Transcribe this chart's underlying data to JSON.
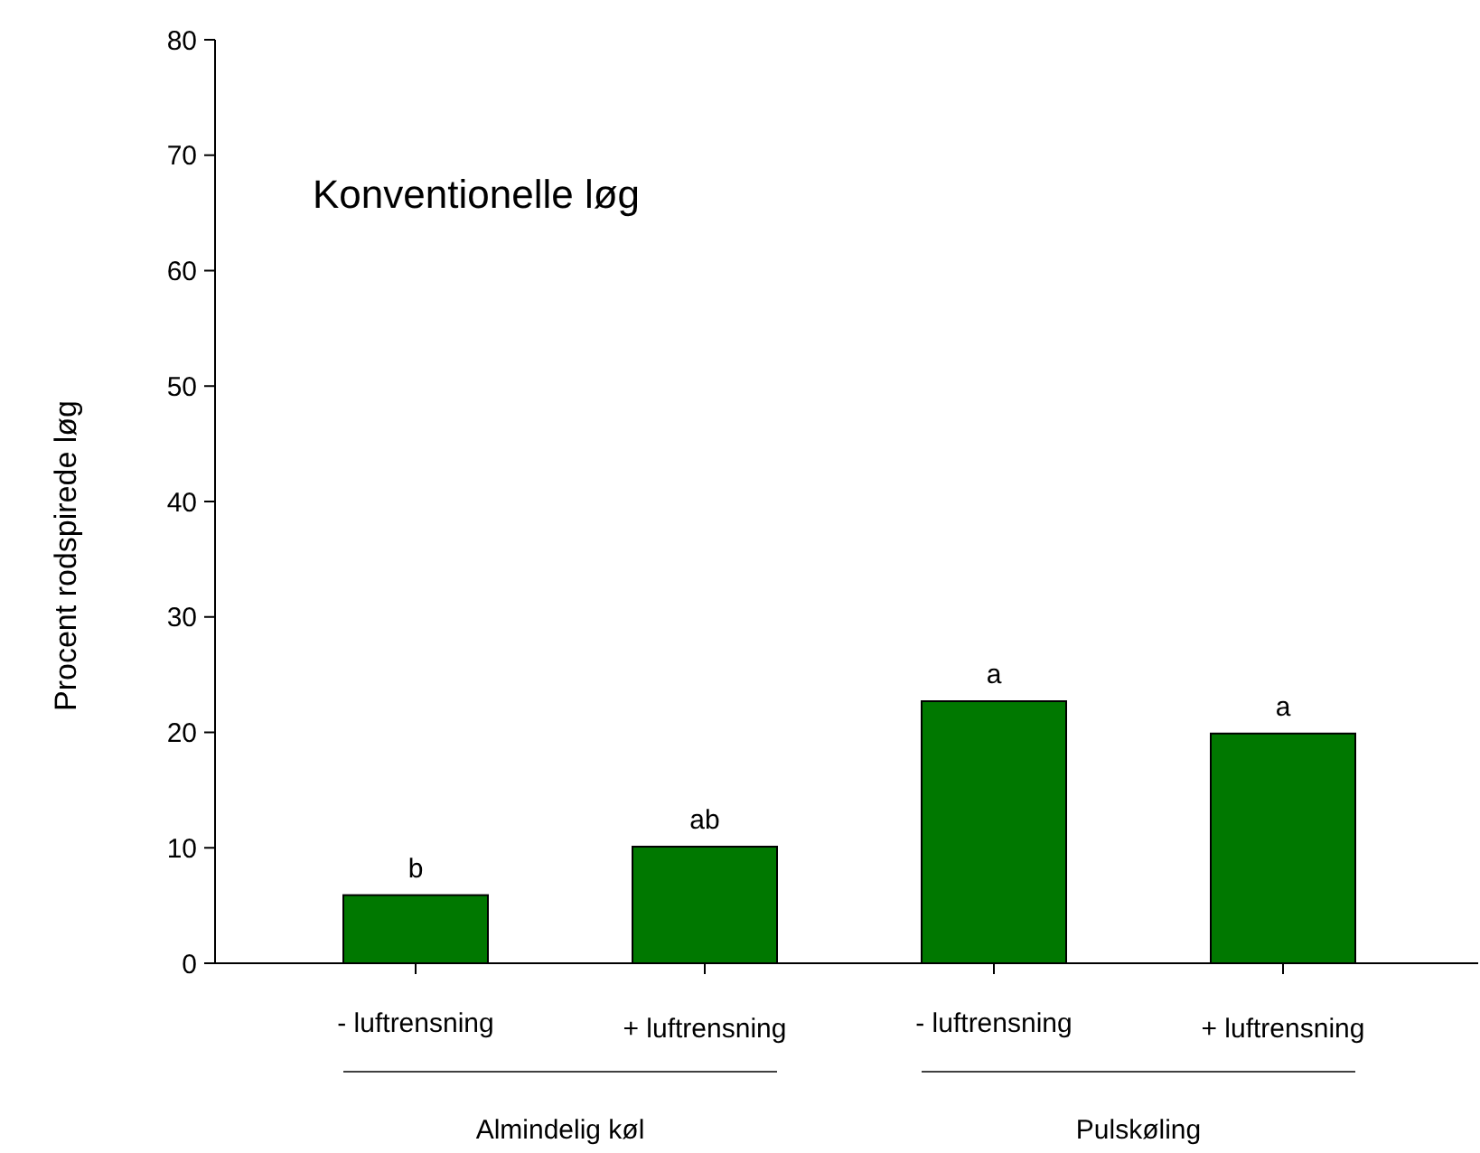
{
  "chart_data": {
    "type": "bar",
    "title": "Konventionelle løg",
    "ylabel": "Procent rodspirede løg",
    "categories": [
      "- luftrensning",
      "+ luftrensning",
      "- luftrensning",
      "+ luftrensning"
    ],
    "values": [
      5.9,
      10.1,
      22.7,
      19.9
    ],
    "value_labels": [
      "b",
      "ab",
      "a",
      "a"
    ],
    "color": "#007800",
    "ylim": [
      0,
      80
    ],
    "yticks": [
      0,
      10,
      20,
      30,
      40,
      50,
      60,
      70,
      80
    ],
    "grid": false,
    "annotations": [
      "Almindelig køl",
      "Pulskøling"
    ]
  }
}
